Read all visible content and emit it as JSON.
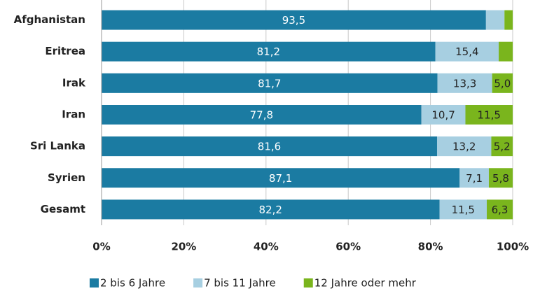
{
  "chart_data": {
    "type": "stacked-bar-horizontal",
    "categories": [
      "Afghanistan",
      "Eritrea",
      "Irak",
      "Iran",
      "Sri Lanka",
      "Syrien",
      "Gesamt"
    ],
    "series": [
      {
        "name": "2 bis 6 Jahre",
        "color": "#1b7ba2",
        "values": [
          93.5,
          81.2,
          81.7,
          77.8,
          81.6,
          87.1,
          82.2
        ],
        "value_labels": [
          "93,5",
          "81,2",
          "81,7",
          "77,8",
          "81,6",
          "87,1",
          "82,2"
        ]
      },
      {
        "name": "7 bis 11 Jahre",
        "color": "#a7cfe1",
        "values": [
          4.5,
          15.4,
          13.3,
          10.7,
          13.2,
          7.1,
          11.5
        ],
        "value_labels": [
          null,
          "15,4",
          "13,3",
          "10,7",
          "13,2",
          "7,1",
          "11,5"
        ]
      },
      {
        "name": "12 Jahre oder mehr",
        "color": "#7ab51d",
        "values": [
          2.0,
          3.4,
          5.0,
          11.5,
          5.2,
          5.8,
          6.3
        ],
        "value_labels": [
          null,
          null,
          "5,0",
          "11,5",
          "5,2",
          "5,8",
          "6,3"
        ]
      }
    ],
    "xlim": [
      0,
      100
    ],
    "xticks": [
      {
        "value": 0,
        "label": "0%"
      },
      {
        "value": 20,
        "label": "20%"
      },
      {
        "value": 40,
        "label": "40%"
      },
      {
        "value": 60,
        "label": "60%"
      },
      {
        "value": 80,
        "label": "80%"
      },
      {
        "value": 100,
        "label": "100%"
      }
    ],
    "grid": true,
    "legend": "bottom"
  }
}
